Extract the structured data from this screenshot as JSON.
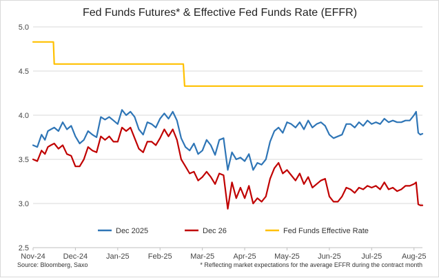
{
  "chart_data": {
    "type": "line",
    "title": "Fed Funds Futures* & Effective Fed Funds Rate (EFFR)",
    "xlabel": "",
    "ylabel": "",
    "ylim": [
      2.5,
      5.0
    ],
    "yticks": [
      "5.0",
      "4.5",
      "4.0",
      "3.5",
      "3.0",
      "2.5"
    ],
    "xtick_labels": [
      "Nov-24",
      "Dec-24",
      "Jan-25",
      "Feb-25",
      "Mar-25",
      "Apr-25",
      "May-25",
      "Jun-25",
      "Jul-25",
      "Aug-25"
    ],
    "grid": true,
    "legend_position": "bottom",
    "source": "Source: Bloomberg, Saxo",
    "footnote": "* Reflecting market expectations for the average EFFR during the contract month",
    "series": [
      {
        "name": "Dec 2025",
        "color": "#2e75b6",
        "x": [
          0,
          0.1,
          0.2,
          0.28,
          0.35,
          0.42,
          0.5,
          0.6,
          0.7,
          0.8,
          0.9,
          1.0,
          1.1,
          1.2,
          1.3,
          1.4,
          1.5,
          1.6,
          1.7,
          1.8,
          1.9,
          2.0,
          2.1,
          2.2,
          2.3,
          2.4,
          2.5,
          2.6,
          2.7,
          2.8,
          2.9,
          3.0,
          3.1,
          3.2,
          3.3,
          3.4,
          3.5,
          3.6,
          3.7,
          3.8,
          3.9,
          4.0,
          4.1,
          4.2,
          4.3,
          4.4,
          4.5,
          4.6,
          4.7,
          4.8,
          4.9,
          5.0,
          5.1,
          5.2,
          5.3,
          5.4,
          5.5,
          5.6,
          5.7,
          5.8,
          5.9,
          6.0,
          6.1,
          6.2,
          6.3,
          6.4,
          6.5,
          6.6,
          6.7,
          6.8,
          6.9,
          7.0,
          7.1,
          7.2,
          7.3,
          7.4,
          7.5,
          7.6,
          7.7,
          7.8,
          7.9,
          8.0,
          8.1,
          8.2,
          8.3,
          8.4,
          8.5,
          8.6,
          8.7,
          8.8,
          8.9,
          9.0,
          9.05,
          9.1,
          9.15,
          9.2
        ],
        "values": [
          3.66,
          3.64,
          3.78,
          3.72,
          3.82,
          3.84,
          3.86,
          3.82,
          3.92,
          3.84,
          3.88,
          3.76,
          3.68,
          3.72,
          3.82,
          3.78,
          3.75,
          3.98,
          3.95,
          3.98,
          3.94,
          3.9,
          4.06,
          4.0,
          4.04,
          3.98,
          3.84,
          3.78,
          3.92,
          3.9,
          3.86,
          3.96,
          4.02,
          3.96,
          4.04,
          3.94,
          3.74,
          3.64,
          3.6,
          3.68,
          3.56,
          3.6,
          3.72,
          3.66,
          3.55,
          3.72,
          3.74,
          3.38,
          3.58,
          3.5,
          3.52,
          3.48,
          3.56,
          3.38,
          3.46,
          3.44,
          3.5,
          3.7,
          3.82,
          3.86,
          3.8,
          3.92,
          3.9,
          3.86,
          3.92,
          3.84,
          3.94,
          3.86,
          3.9,
          3.92,
          3.88,
          3.78,
          3.74,
          3.76,
          3.78,
          3.9,
          3.9,
          3.86,
          3.92,
          3.88,
          3.94,
          3.9,
          3.92,
          3.9,
          3.96,
          3.92,
          3.94,
          3.92,
          3.92,
          3.94,
          3.94,
          4.0,
          4.04,
          3.8,
          3.78,
          3.79
        ]
      },
      {
        "name": "Dec 26",
        "color": "#c00000",
        "x": [
          0,
          0.1,
          0.2,
          0.28,
          0.35,
          0.42,
          0.5,
          0.6,
          0.7,
          0.8,
          0.9,
          1.0,
          1.1,
          1.2,
          1.3,
          1.4,
          1.5,
          1.6,
          1.7,
          1.8,
          1.9,
          2.0,
          2.1,
          2.2,
          2.3,
          2.4,
          2.5,
          2.6,
          2.7,
          2.8,
          2.9,
          3.0,
          3.1,
          3.2,
          3.3,
          3.4,
          3.5,
          3.6,
          3.7,
          3.8,
          3.9,
          4.0,
          4.1,
          4.2,
          4.3,
          4.4,
          4.5,
          4.6,
          4.7,
          4.8,
          4.9,
          5.0,
          5.1,
          5.2,
          5.3,
          5.4,
          5.5,
          5.6,
          5.7,
          5.8,
          5.9,
          6.0,
          6.1,
          6.2,
          6.3,
          6.4,
          6.5,
          6.6,
          6.7,
          6.8,
          6.9,
          7.0,
          7.1,
          7.2,
          7.3,
          7.4,
          7.5,
          7.6,
          7.7,
          7.8,
          7.9,
          8.0,
          8.1,
          8.2,
          8.3,
          8.4,
          8.5,
          8.6,
          8.7,
          8.8,
          8.9,
          9.0,
          9.05,
          9.1,
          9.15,
          9.2
        ],
        "values": [
          3.5,
          3.48,
          3.6,
          3.56,
          3.64,
          3.66,
          3.68,
          3.62,
          3.66,
          3.56,
          3.54,
          3.42,
          3.42,
          3.5,
          3.64,
          3.6,
          3.58,
          3.76,
          3.72,
          3.76,
          3.7,
          3.7,
          3.86,
          3.82,
          3.86,
          3.74,
          3.62,
          3.58,
          3.7,
          3.7,
          3.66,
          3.74,
          3.84,
          3.76,
          3.84,
          3.72,
          3.5,
          3.42,
          3.34,
          3.36,
          3.26,
          3.3,
          3.36,
          3.3,
          3.22,
          3.34,
          3.32,
          2.94,
          3.24,
          3.06,
          3.18,
          3.06,
          3.2,
          3.0,
          3.06,
          3.02,
          3.08,
          3.28,
          3.4,
          3.46,
          3.34,
          3.38,
          3.32,
          3.26,
          3.34,
          3.22,
          3.3,
          3.18,
          3.22,
          3.26,
          3.28,
          3.08,
          3.02,
          3.02,
          3.08,
          3.18,
          3.16,
          3.12,
          3.18,
          3.16,
          3.2,
          3.18,
          3.2,
          3.16,
          3.24,
          3.16,
          3.18,
          3.14,
          3.16,
          3.2,
          3.2,
          3.22,
          3.24,
          2.99,
          2.98,
          2.98
        ]
      },
      {
        "name": "Fed Funds Effective Rate",
        "color": "#ffc000",
        "x": [
          0,
          0.48,
          0.5,
          3.48,
          3.5,
          3.55,
          3.58,
          9.2
        ],
        "values": [
          4.83,
          4.83,
          4.58,
          4.58,
          4.58,
          4.58,
          4.33,
          4.33
        ]
      }
    ]
  }
}
